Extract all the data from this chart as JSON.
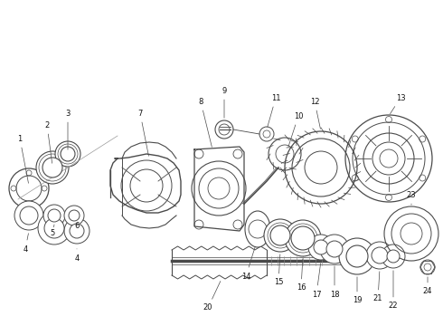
{
  "bg_color": "#ffffff",
  "line_color": "#4a4a4a",
  "text_color": "#111111",
  "figsize": [
    4.9,
    3.6
  ],
  "dpi": 100,
  "lw": 0.75
}
